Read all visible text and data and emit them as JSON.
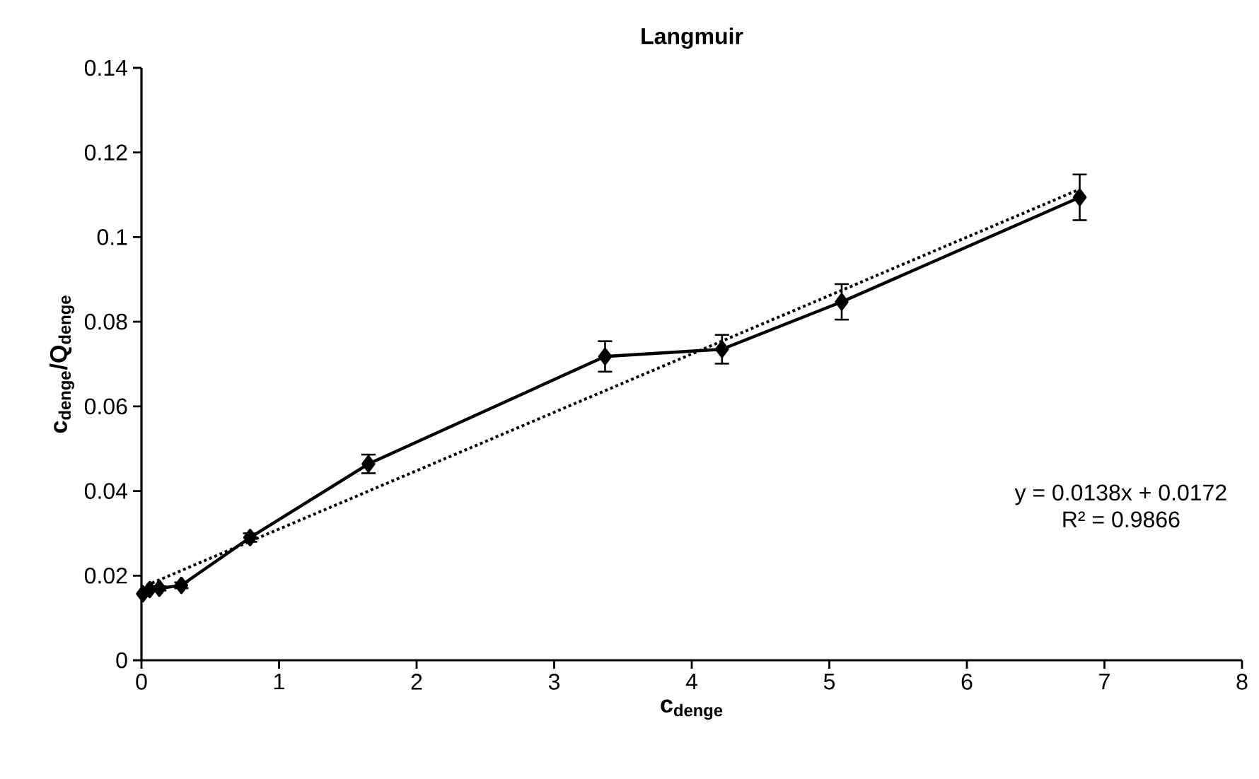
{
  "chart_data": {
    "type": "line",
    "title": "Langmuir",
    "xlabel": "c$_{denge}$",
    "ylabel": "c$_{denge}$/Q$_{denge}$",
    "xlim": [
      0,
      8
    ],
    "xticks": [
      0,
      1,
      2,
      3,
      4,
      5,
      6,
      7,
      8
    ],
    "ylim": [
      0,
      0.14
    ],
    "yticks": [
      0,
      0.02,
      0.04,
      0.06,
      0.08,
      0.1,
      0.12,
      0.14
    ],
    "grid": false,
    "series": [
      {
        "color": "#000000",
        "marker": "diamond",
        "line_style": "solid",
        "x": [
          0.01,
          0.06,
          0.13,
          0.29,
          0.79,
          1.65,
          3.37,
          4.22,
          5.09,
          6.82
        ],
        "values": [
          0.0157,
          0.0167,
          0.017,
          0.0177,
          0.029,
          0.0464,
          0.0718,
          0.0735,
          0.0847,
          0.1094
        ],
        "errors": [
          0.0005,
          0.0005,
          0.0005,
          0.0007,
          0.001,
          0.0022,
          0.0036,
          0.0034,
          0.0042,
          0.0054
        ]
      },
      {
        "type": "line",
        "color": "#000000",
        "marker": "none",
        "line_style": "dotted",
        "x": [
          0,
          6.82
        ],
        "values": [
          0.0172,
          0.1113
        ]
      }
    ],
    "annotations": [
      "y = 0.0138x + 0.0172",
      "R² = 0.9866"
    ]
  }
}
